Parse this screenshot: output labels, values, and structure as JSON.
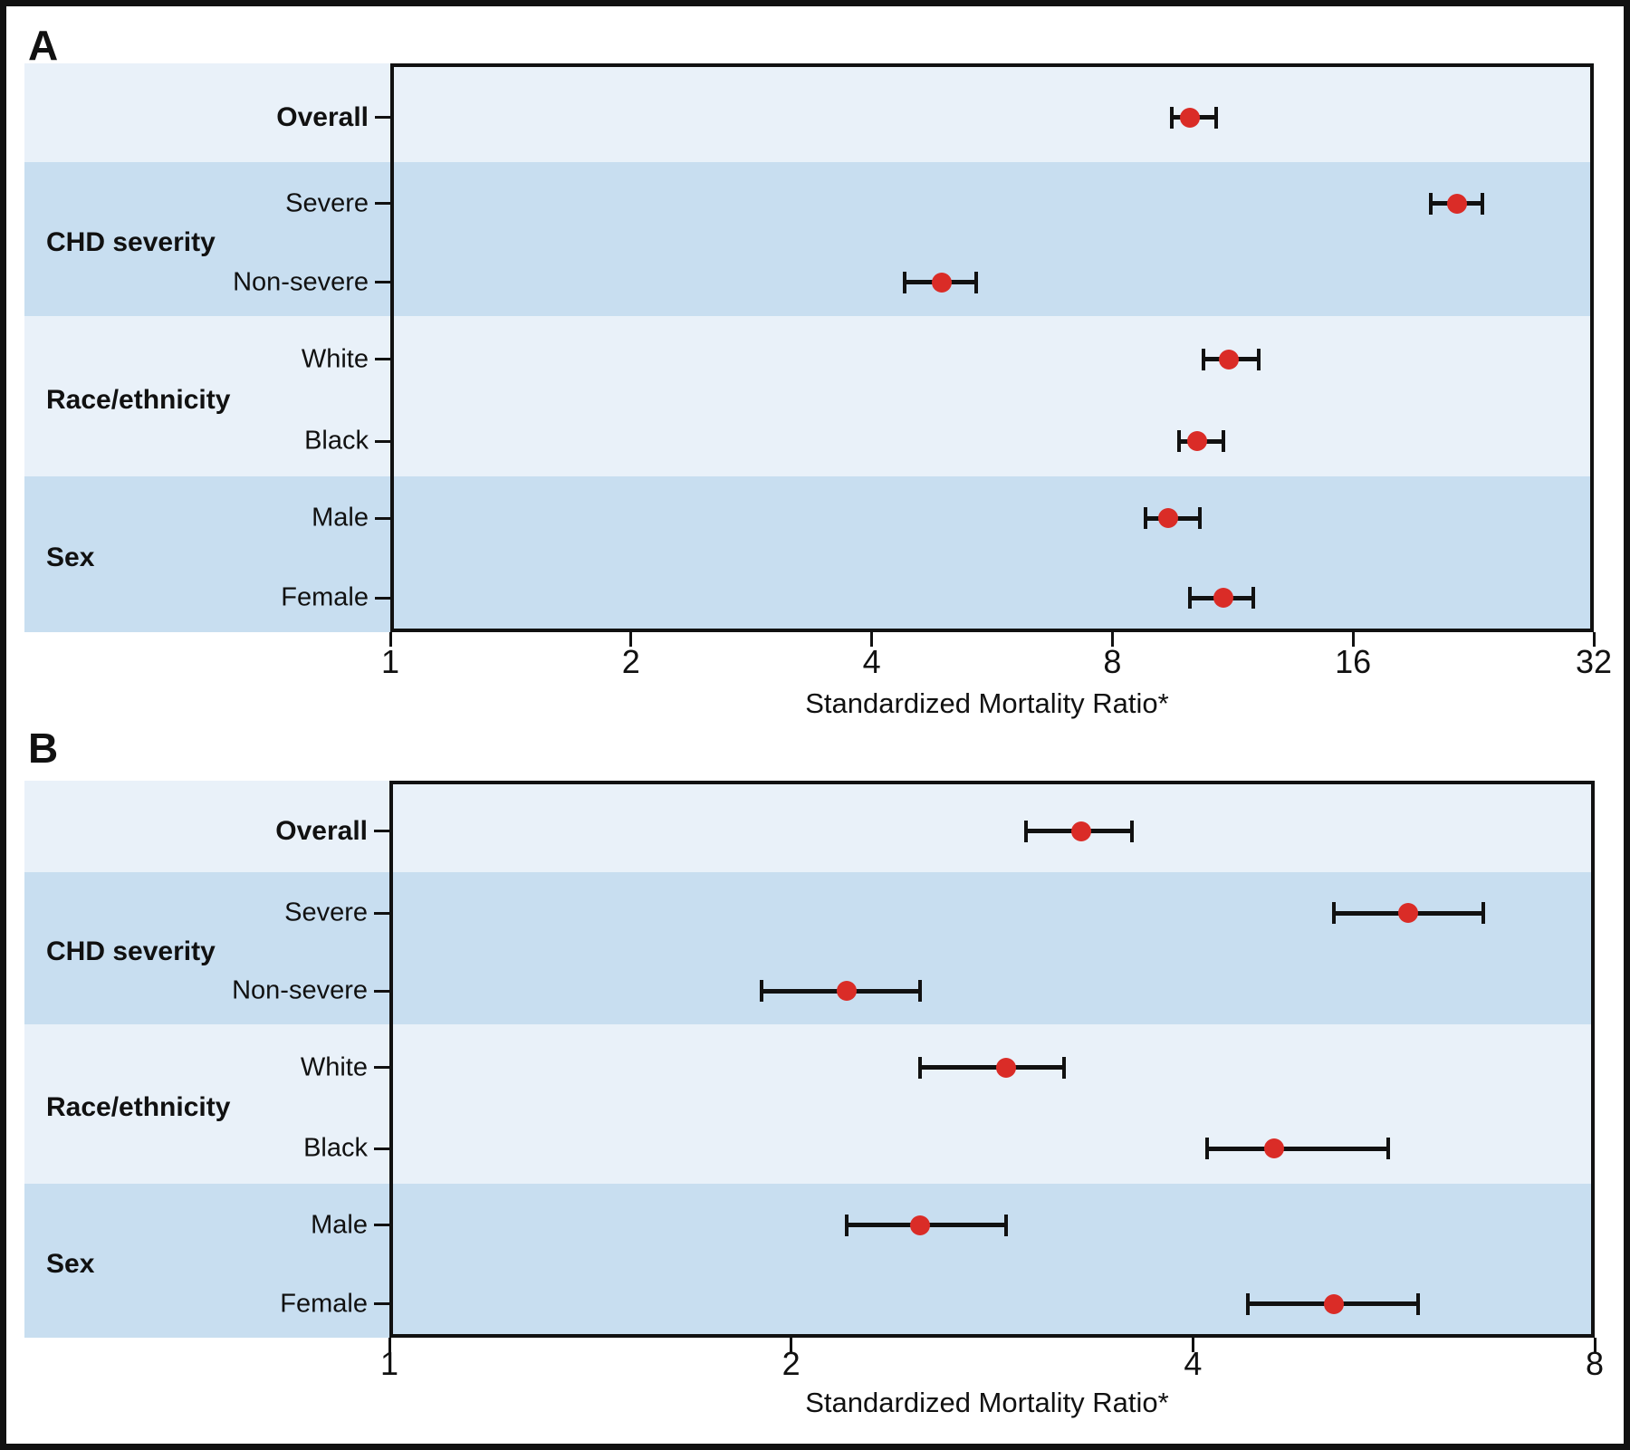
{
  "figure": {
    "panel_a_label": "A",
    "panel_b_label": "B"
  },
  "colors": {
    "band_light": "#e9f1f9",
    "band_dark": "#c8def0",
    "point": "#da2c27",
    "line": "#111111",
    "frame": "#111111",
    "background": "#ffffff",
    "text": "#111111"
  },
  "chart_data": [
    {
      "type": "scatter",
      "panel_label": "A",
      "xlabel": "Standardized Mortality Ratio*",
      "x_scale": "log2",
      "xlim": [
        1,
        32
      ],
      "x_ticks": [
        1,
        2,
        4,
        8,
        16,
        32
      ],
      "grid": false,
      "legend": "none",
      "point_marker": "filled-red-circle-with-horizontal-error-bars",
      "groups": [
        {
          "label": "",
          "rows": [
            {
              "label": "Overall",
              "bold": true,
              "value": 10.0,
              "ci_low": 9.5,
              "ci_high": 10.8
            }
          ]
        },
        {
          "label": "CHD severity",
          "rows": [
            {
              "label": "Severe",
              "bold": false,
              "value": 21.6,
              "ci_low": 20.0,
              "ci_high": 23.2
            },
            {
              "label": "Non-severe",
              "bold": false,
              "value": 4.9,
              "ci_low": 4.4,
              "ci_high": 5.4
            }
          ]
        },
        {
          "label": "Race/ethnicity",
          "rows": [
            {
              "label": "White",
              "bold": false,
              "value": 11.2,
              "ci_low": 10.4,
              "ci_high": 12.2
            },
            {
              "label": "Black",
              "bold": false,
              "value": 10.2,
              "ci_low": 9.7,
              "ci_high": 11.0
            }
          ]
        },
        {
          "label": "Sex",
          "rows": [
            {
              "label": "Male",
              "bold": false,
              "value": 9.4,
              "ci_low": 8.8,
              "ci_high": 10.3
            },
            {
              "label": "Female",
              "bold": false,
              "value": 11.0,
              "ci_low": 10.0,
              "ci_high": 12.0
            }
          ]
        }
      ]
    },
    {
      "type": "scatter",
      "panel_label": "B",
      "xlabel": "Standardized Mortality Ratio*",
      "x_scale": "log2",
      "xlim": [
        1,
        8
      ],
      "x_ticks": [
        1,
        2,
        4,
        8
      ],
      "grid": false,
      "legend": "none",
      "point_marker": "filled-red-circle-with-horizontal-error-bars",
      "groups": [
        {
          "label": "",
          "rows": [
            {
              "label": "Overall",
              "bold": true,
              "value": 3.3,
              "ci_low": 3.0,
              "ci_high": 3.6
            }
          ]
        },
        {
          "label": "CHD severity",
          "rows": [
            {
              "label": "Severe",
              "bold": false,
              "value": 5.8,
              "ci_low": 5.1,
              "ci_high": 6.6
            },
            {
              "label": "Non-severe",
              "bold": false,
              "value": 2.2,
              "ci_low": 1.9,
              "ci_high": 2.5
            }
          ]
        },
        {
          "label": "Race/ethnicity",
          "rows": [
            {
              "label": "White",
              "bold": false,
              "value": 2.9,
              "ci_low": 2.5,
              "ci_high": 3.2
            },
            {
              "label": "Black",
              "bold": false,
              "value": 4.6,
              "ci_low": 4.1,
              "ci_high": 5.6
            }
          ]
        },
        {
          "label": "Sex",
          "rows": [
            {
              "label": "Male",
              "bold": false,
              "value": 2.5,
              "ci_low": 2.2,
              "ci_high": 2.9
            },
            {
              "label": "Female",
              "bold": false,
              "value": 5.1,
              "ci_low": 4.4,
              "ci_high": 5.9
            }
          ]
        }
      ]
    }
  ]
}
